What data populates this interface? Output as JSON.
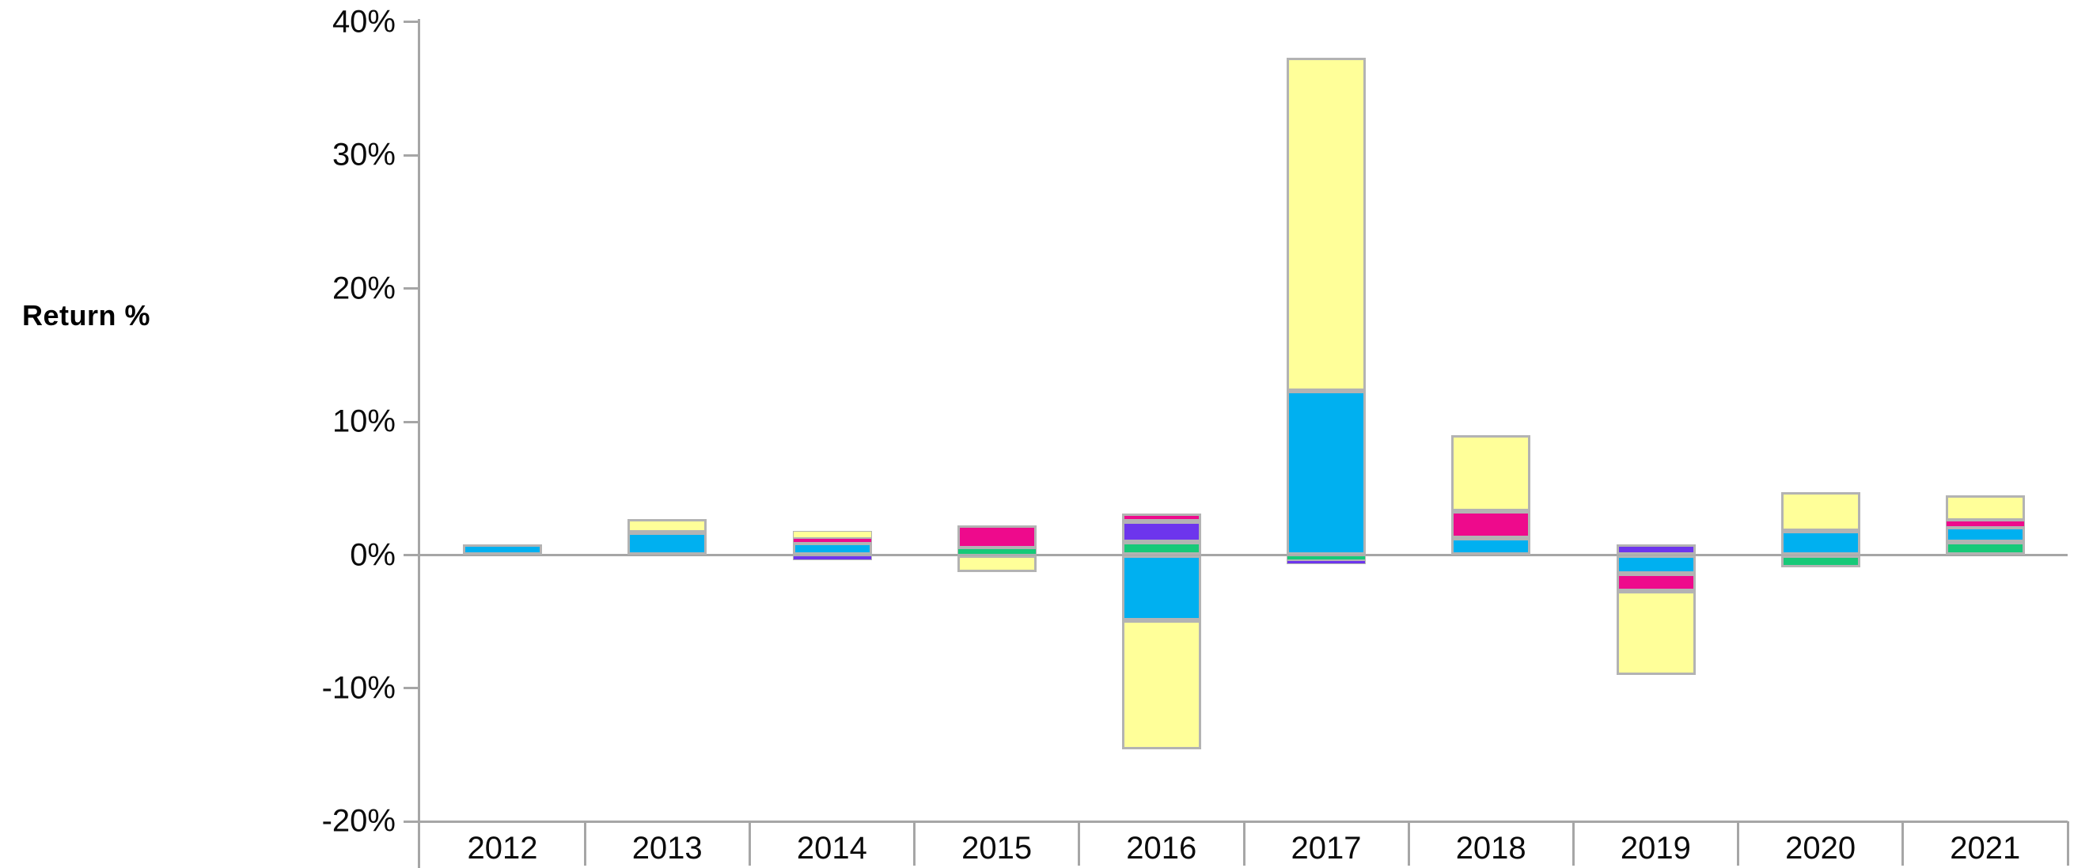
{
  "chart_data": {
    "type": "bar",
    "stacked": true,
    "title": "",
    "ylabel": "Return %",
    "xlabel": "",
    "categories": [
      "2012",
      "2013",
      "2014",
      "2015",
      "2016",
      "2017",
      "2018",
      "2019",
      "2020",
      "2021"
    ],
    "ylim": [
      -20,
      40
    ],
    "ytick_values": [
      40,
      30,
      20,
      10,
      0,
      -10,
      -20
    ],
    "ytick_labels": [
      "40%",
      "30%",
      "20%",
      "10%",
      "0%",
      "-10%",
      "-20%"
    ],
    "grid": false,
    "legend": "none",
    "colors": {
      "blue": "#00B0F0",
      "green": "#17C978",
      "purple": "#6D35ED",
      "magenta": "#EE0A8C",
      "yellow": "#FFFF99",
      "axis": "#A6A6A6",
      "segment_border": "#B3B3B3"
    },
    "bars": [
      {
        "category": "2012",
        "pos": [
          {
            "s": "blue",
            "v": 0.8
          }
        ],
        "neg": []
      },
      {
        "category": "2013",
        "pos": [
          {
            "s": "blue",
            "v": 1.7
          },
          {
            "s": "yellow",
            "v": 1.0
          }
        ],
        "neg": []
      },
      {
        "category": "2014",
        "pos": [
          {
            "s": "blue",
            "v": 0.9
          },
          {
            "s": "magenta",
            "v": 0.35
          },
          {
            "s": "yellow",
            "v": 0.55
          }
        ],
        "neg": [
          {
            "s": "purple",
            "v": 0.4
          }
        ]
      },
      {
        "category": "2015",
        "pos": [
          {
            "s": "green",
            "v": 0.5
          },
          {
            "s": "magenta",
            "v": 1.75
          }
        ],
        "neg": [
          {
            "s": "yellow",
            "v": 1.3
          }
        ]
      },
      {
        "category": "2016",
        "pos": [
          {
            "s": "green",
            "v": 1.0
          },
          {
            "s": "purple",
            "v": 1.5
          },
          {
            "s": "magenta",
            "v": 0.6
          }
        ],
        "neg": [
          {
            "s": "blue",
            "v": 4.9
          },
          {
            "s": "yellow",
            "v": 9.7
          }
        ]
      },
      {
        "category": "2017",
        "pos": [
          {
            "s": "blue",
            "v": 12.3
          },
          {
            "s": "yellow",
            "v": 25.0
          }
        ],
        "neg": [
          {
            "s": "green",
            "v": 0.4
          },
          {
            "s": "purple",
            "v": 0.3
          }
        ]
      },
      {
        "category": "2018",
        "pos": [
          {
            "s": "blue",
            "v": 1.3
          },
          {
            "s": "magenta",
            "v": 2.0
          },
          {
            "s": "yellow",
            "v": 5.7
          }
        ],
        "neg": []
      },
      {
        "category": "2019",
        "pos": [
          {
            "s": "purple",
            "v": 0.8
          }
        ],
        "neg": [
          {
            "s": "blue",
            "v": 1.4
          },
          {
            "s": "magenta",
            "v": 1.3
          },
          {
            "s": "yellow",
            "v": 6.3
          }
        ]
      },
      {
        "category": "2020",
        "pos": [
          {
            "s": "blue",
            "v": 1.8
          },
          {
            "s": "yellow",
            "v": 2.9
          }
        ],
        "neg": [
          {
            "s": "green",
            "v": 0.9
          }
        ]
      },
      {
        "category": "2021",
        "pos": [
          {
            "s": "green",
            "v": 1.0
          },
          {
            "s": "blue",
            "v": 1.1
          },
          {
            "s": "magenta",
            "v": 0.5
          },
          {
            "s": "yellow",
            "v": 1.9
          }
        ],
        "neg": []
      }
    ]
  }
}
